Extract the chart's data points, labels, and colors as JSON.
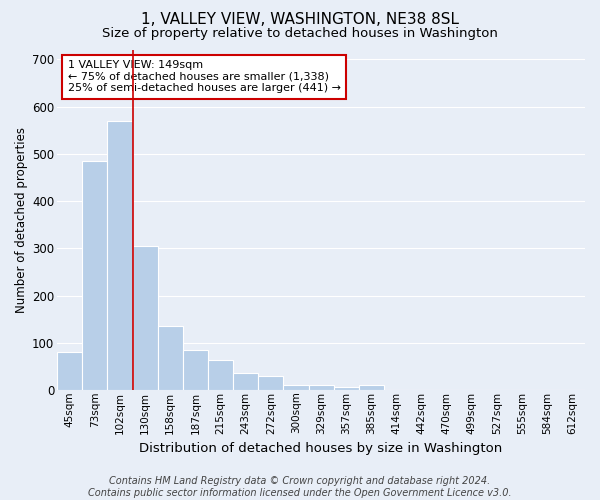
{
  "title": "1, VALLEY VIEW, WASHINGTON, NE38 8SL",
  "subtitle": "Size of property relative to detached houses in Washington",
  "xlabel": "Distribution of detached houses by size in Washington",
  "ylabel": "Number of detached properties",
  "footer_line1": "Contains HM Land Registry data © Crown copyright and database right 2024.",
  "footer_line2": "Contains public sector information licensed under the Open Government Licence v3.0.",
  "categories": [
    "45sqm",
    "73sqm",
    "102sqm",
    "130sqm",
    "158sqm",
    "187sqm",
    "215sqm",
    "243sqm",
    "272sqm",
    "300sqm",
    "329sqm",
    "357sqm",
    "385sqm",
    "414sqm",
    "442sqm",
    "470sqm",
    "499sqm",
    "527sqm",
    "555sqm",
    "584sqm",
    "612sqm"
  ],
  "values": [
    80,
    485,
    570,
    305,
    135,
    85,
    63,
    37,
    30,
    10,
    10,
    7,
    10,
    0,
    0,
    0,
    0,
    0,
    0,
    0,
    0
  ],
  "bar_color": "#b8cfe8",
  "bar_edge_color": "#ffffff",
  "bg_color": "#e8eef7",
  "plot_bg_color": "#e8eef7",
  "grid_color": "#ffffff",
  "vline_x_index": 3,
  "vline_color": "#cc0000",
  "annotation_text": "1 VALLEY VIEW: 149sqm\n← 75% of detached houses are smaller (1,338)\n25% of semi-detached houses are larger (441) →",
  "annotation_box_edge_color": "#cc0000",
  "ylim": [
    0,
    720
  ],
  "yticks": [
    0,
    100,
    200,
    300,
    400,
    500,
    600,
    700
  ],
  "title_fontsize": 11,
  "subtitle_fontsize": 9.5,
  "xlabel_fontsize": 9.5,
  "ylabel_fontsize": 8.5,
  "tick_fontsize": 7.5,
  "annotation_fontsize": 8,
  "footer_fontsize": 7
}
